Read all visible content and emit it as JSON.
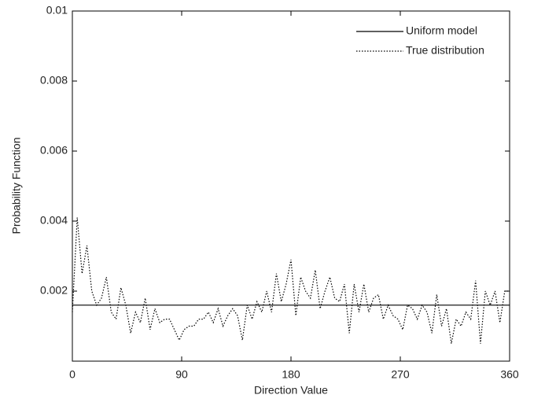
{
  "chart_data": {
    "type": "line",
    "xlabel": "Direction Value",
    "ylabel": "Probability Function",
    "xlim": [
      0,
      360
    ],
    "xticks": [
      0,
      90,
      180,
      270,
      360
    ],
    "ylim": [
      0,
      0.01
    ],
    "yticks": [
      0.002,
      0.004,
      0.006,
      0.008,
      0.01
    ],
    "legend": "upper right",
    "series": [
      {
        "name": "Uniform model",
        "color": "#000000",
        "style": "solid",
        "x": [
          0,
          360
        ],
        "values": [
          0.0016,
          0.0016
        ]
      },
      {
        "name": "True distribution",
        "color": "#000000",
        "style": "dotted",
        "x": [
          0,
          4,
          8,
          12,
          16,
          20,
          24,
          28,
          32,
          36,
          40,
          44,
          48,
          52,
          56,
          60,
          64,
          68,
          72,
          76,
          80,
          84,
          88,
          92,
          96,
          100,
          104,
          108,
          112,
          116,
          120,
          124,
          128,
          132,
          136,
          140,
          144,
          148,
          152,
          156,
          160,
          164,
          168,
          172,
          176,
          180,
          184,
          188,
          192,
          196,
          200,
          204,
          208,
          212,
          216,
          220,
          224,
          228,
          232,
          236,
          240,
          244,
          248,
          252,
          256,
          260,
          264,
          268,
          272,
          276,
          280,
          284,
          288,
          292,
          296,
          300,
          304,
          308,
          312,
          316,
          320,
          324,
          328,
          332,
          336,
          340,
          344,
          348,
          352,
          356,
          360
        ],
        "values": [
          0.0014,
          0.0041,
          0.0025,
          0.0033,
          0.002,
          0.0016,
          0.0018,
          0.0024,
          0.0014,
          0.0012,
          0.0021,
          0.0016,
          0.0008,
          0.0014,
          0.0011,
          0.0018,
          0.0009,
          0.0015,
          0.0011,
          0.0012,
          0.0012,
          0.0009,
          0.0006,
          0.0009,
          0.001,
          0.001,
          0.0012,
          0.0012,
          0.0014,
          0.0011,
          0.0015,
          0.001,
          0.0013,
          0.0015,
          0.0013,
          0.0006,
          0.0016,
          0.0012,
          0.0017,
          0.0014,
          0.002,
          0.0014,
          0.0025,
          0.0017,
          0.0022,
          0.0029,
          0.0013,
          0.0024,
          0.002,
          0.0018,
          0.0026,
          0.0015,
          0.002,
          0.0024,
          0.0018,
          0.0017,
          0.0022,
          0.0008,
          0.0022,
          0.0014,
          0.0022,
          0.0014,
          0.0018,
          0.0019,
          0.0012,
          0.0016,
          0.0013,
          0.0012,
          0.0009,
          0.0016,
          0.0015,
          0.0012,
          0.0016,
          0.0014,
          0.0008,
          0.0019,
          0.001,
          0.0015,
          0.0005,
          0.0012,
          0.001,
          0.0014,
          0.0012,
          0.0023,
          0.0005,
          0.002,
          0.0016,
          0.002,
          0.0011,
          0.002,
          0.002
        ]
      }
    ]
  }
}
